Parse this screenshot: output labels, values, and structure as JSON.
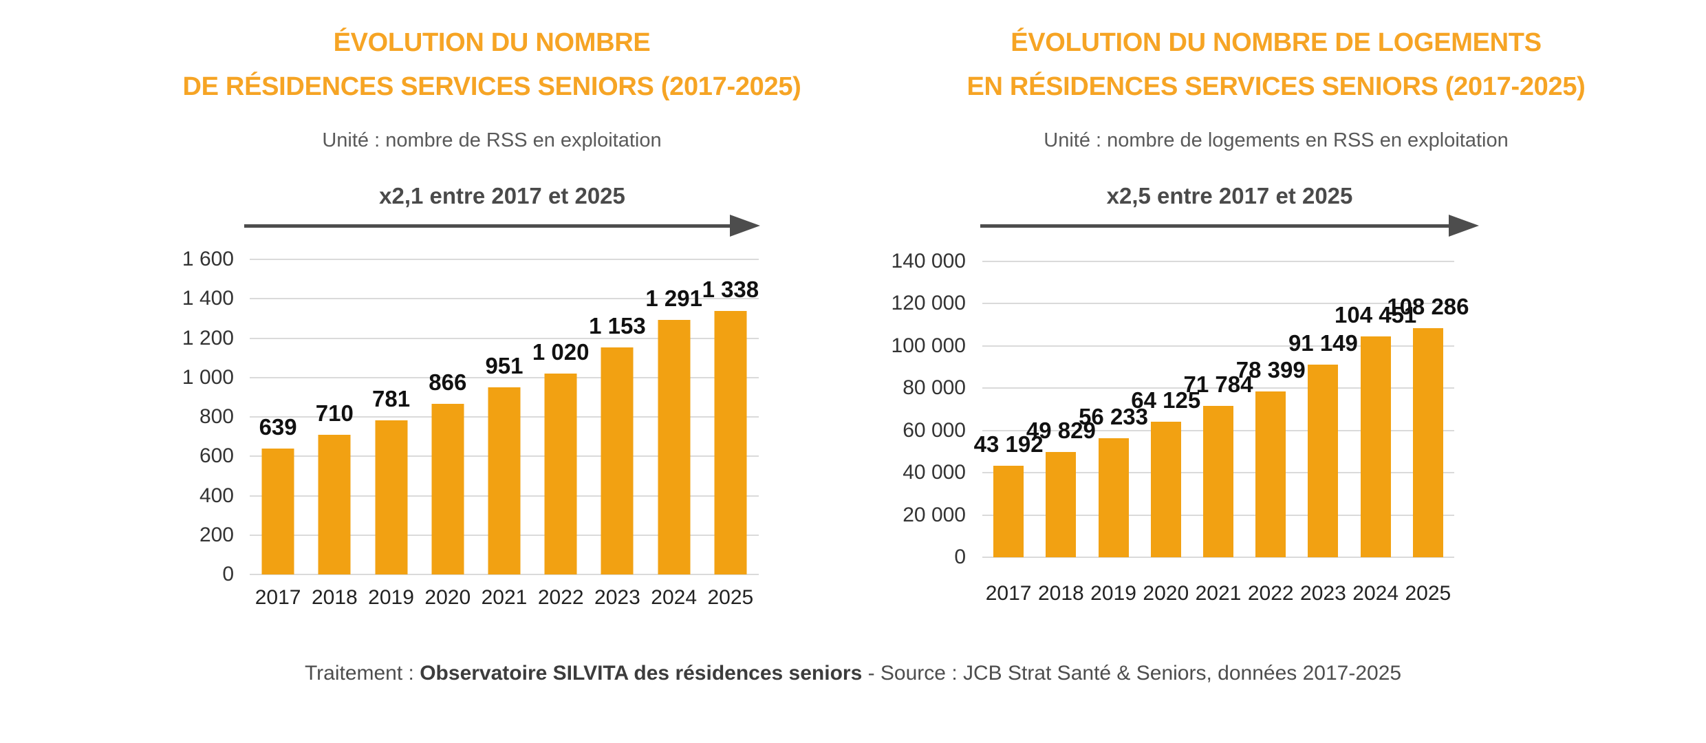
{
  "colors": {
    "title_orange": "#F6A424",
    "bar_orange": "#F2A112",
    "gridline_gray": "#DADADA",
    "annotation_gray": "#4A4A4A",
    "arrow_gray": "#4D4D4D",
    "subtitle_gray": "#595959",
    "axis_label_color": "#333333",
    "value_label_color": "#111111"
  },
  "footer": {
    "prefix": "Traitement : ",
    "bold": "Observatoire SILVITA des résidences seniors",
    "suffix": " - Source : JCB Strat Santé & Seniors, données 2017-2025"
  },
  "chart_data": [
    {
      "type": "bar",
      "title_lines": [
        "ÉVOLUTION DU NOMBRE",
        "DE RÉSIDENCES SERVICES SENIORS (2017-2025)"
      ],
      "subtitle": "Unité : nombre de RSS en exploitation",
      "annotation": "x2,1 entre 2017 et 2025",
      "categories": [
        "2017",
        "2018",
        "2019",
        "2020",
        "2021",
        "2022",
        "2023",
        "2024",
        "2025"
      ],
      "values": [
        639,
        710,
        781,
        866,
        951,
        1020,
        1153,
        1291,
        1338
      ],
      "value_labels": [
        "639",
        "710",
        "781",
        "866",
        "951",
        "1 020",
        "1 153",
        "1 291",
        "1 338"
      ],
      "ylim": [
        0,
        1600
      ],
      "y_tick_step": 200,
      "y_tick_labels_top_down": [
        "1 600",
        "1 400",
        "1 200",
        "1 000",
        "800",
        "600",
        "400",
        "200",
        "0"
      ],
      "xlabel": "",
      "ylabel": "",
      "grid": true,
      "legend": "none",
      "bar_color": "#F2A112"
    },
    {
      "type": "bar",
      "title_lines": [
        "ÉVOLUTION DU NOMBRE DE LOGEMENTS",
        "EN RÉSIDENCES SERVICES SENIORS (2017-2025)"
      ],
      "subtitle": "Unité : nombre de logements en RSS en exploitation",
      "annotation": "x2,5 entre 2017 et 2025",
      "categories": [
        "2017",
        "2018",
        "2019",
        "2020",
        "2021",
        "2022",
        "2023",
        "2024",
        "2025"
      ],
      "values": [
        43192,
        49829,
        56233,
        64125,
        71784,
        78399,
        91149,
        104451,
        108286
      ],
      "value_labels": [
        "43 192",
        "49 829",
        "56 233",
        "64 125",
        "71 784",
        "78 399",
        "91 149",
        "104 451",
        "108 286"
      ],
      "ylim": [
        0,
        140000
      ],
      "y_tick_step": 20000,
      "y_tick_labels_top_down": [
        "140 000",
        "120 000",
        "100 000",
        "80 000",
        "60 000",
        "40 000",
        "20 000",
        "0"
      ],
      "xlabel": "",
      "ylabel": "",
      "grid": true,
      "legend": "none",
      "bar_color": "#F2A112"
    }
  ]
}
